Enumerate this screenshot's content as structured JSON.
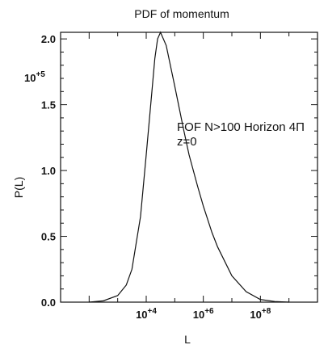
{
  "chart_data": {
    "type": "line",
    "title": "PDF of momentum",
    "xlabel": "L",
    "ylabel": "P(L)",
    "y_multiplier": {
      "base": "10",
      "exponent": "+5"
    },
    "x_scale": "log",
    "xlim": [
      10,
      10000000000
    ],
    "ylim": [
      0,
      2.05
    ],
    "y_unit": "1e5",
    "x_ticks": [
      {
        "value": 10000,
        "base": "10",
        "exp": "+4"
      },
      {
        "value": 1000000,
        "base": "10",
        "exp": "+6"
      },
      {
        "value": 100000000,
        "base": "10",
        "exp": "+8"
      }
    ],
    "y_ticks": [
      {
        "value": 0.0,
        "label": "0.0"
      },
      {
        "value": 0.5,
        "label": "0.5"
      },
      {
        "value": 1.0,
        "label": "1.0"
      },
      {
        "value": 1.5,
        "label": "1.5"
      },
      {
        "value": 2.0,
        "label": "2.0"
      }
    ],
    "annotations": [
      "FOF N>100 Horizon 4Π",
      "z=0"
    ],
    "grid": false,
    "series": [
      {
        "x": [
          100,
          316,
          1000,
          2000,
          3160,
          6310,
          10000,
          15800,
          20000,
          25000,
          31600,
          50100,
          100000,
          200000,
          316000,
          631000,
          1000000,
          2000000,
          3160000,
          10000000,
          31600000,
          100000000,
          316000000,
          1000000000
        ],
        "y": [
          0.0,
          0.01,
          0.05,
          0.13,
          0.25,
          0.65,
          1.12,
          1.6,
          1.85,
          2.0,
          2.05,
          1.95,
          1.64,
          1.32,
          1.12,
          0.88,
          0.73,
          0.53,
          0.42,
          0.2,
          0.08,
          0.02,
          0.005,
          0.0
        ]
      }
    ]
  }
}
